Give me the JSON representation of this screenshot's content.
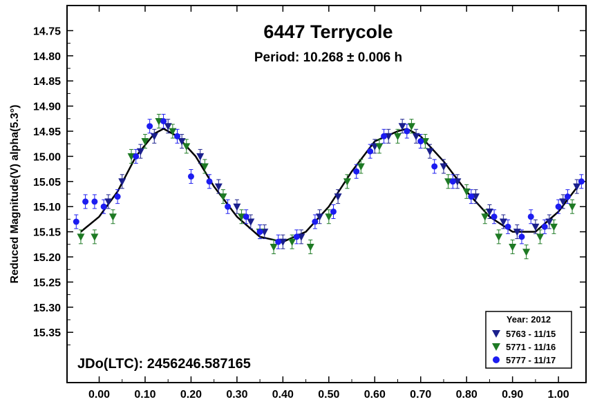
{
  "chart_data": {
    "type": "scatter",
    "title": "6447 Terrycole",
    "subtitle": "Period: 10.268 ± 0.006 h",
    "ylabel": "Reduced Magnitude(V) alpha(5.3°)",
    "xlabel": "",
    "annotation": "JDo(LTC): 2456246.587165",
    "xlim": [
      -0.07,
      1.06
    ],
    "ylim": [
      14.7,
      15.45
    ],
    "y_inverted": true,
    "grid": false,
    "legend_position": "bottom-right",
    "x_ticks": [
      0.0,
      0.1,
      0.2,
      0.3,
      0.4,
      0.5,
      0.6,
      0.7,
      0.8,
      0.9,
      1.0
    ],
    "x_tick_labels": [
      "0.00",
      "0.10",
      "0.20",
      "0.30",
      "0.40",
      "0.50",
      "0.60",
      "0.70",
      "0.80",
      "0.90",
      "1.00"
    ],
    "y_ticks": [
      14.75,
      14.8,
      14.85,
      14.9,
      14.95,
      15.0,
      15.05,
      15.1,
      15.15,
      15.2,
      15.25,
      15.3,
      15.35
    ],
    "y_tick_labels": [
      "14.75",
      "14.80",
      "14.85",
      "14.90",
      "14.95",
      "15.00",
      "15.05",
      "15.10",
      "15.15",
      "15.20",
      "15.25",
      "15.30",
      "15.35"
    ],
    "legend": {
      "title": "Year: 2012",
      "entries": [
        {
          "label": "5763 - 11/15",
          "marker": "triangle-down",
          "color": "#1a1f8c"
        },
        {
          "label": "5771 - 11/16",
          "marker": "triangle-down",
          "color": "#1e7a24"
        },
        {
          "label": "5777 - 11/17",
          "marker": "circle",
          "color": "#1c1cf0"
        }
      ]
    },
    "fit_curve": {
      "x": [
        -0.04,
        0.0,
        0.04,
        0.08,
        0.12,
        0.14,
        0.17,
        0.21,
        0.25,
        0.3,
        0.35,
        0.4,
        0.45,
        0.5,
        0.55,
        0.6,
        0.65,
        0.67,
        0.7,
        0.75,
        0.8,
        0.85,
        0.9,
        0.95,
        1.0,
        1.05
      ],
      "y": [
        15.15,
        15.12,
        15.07,
        15.0,
        14.955,
        14.945,
        14.96,
        15.0,
        15.06,
        15.12,
        15.16,
        15.17,
        15.15,
        15.1,
        15.03,
        14.97,
        14.95,
        14.945,
        14.96,
        15.01,
        15.07,
        15.12,
        15.15,
        15.15,
        15.11,
        15.05
      ]
    },
    "series": [
      {
        "name": "5763 - 11/15",
        "x": [
          0.02,
          0.05,
          0.09,
          0.12,
          0.15,
          0.18,
          0.22,
          0.26,
          0.3,
          0.33,
          0.36,
          0.4,
          0.44,
          0.48,
          0.52,
          0.6,
          0.63,
          0.66,
          0.69,
          0.72,
          0.75,
          0.78,
          0.82,
          0.85,
          0.88,
          0.91,
          0.95,
          0.98,
          1.01,
          1.04
        ],
        "y": [
          15.09,
          15.05,
          14.99,
          14.96,
          14.94,
          14.97,
          15.0,
          15.06,
          15.1,
          15.13,
          15.15,
          15.17,
          15.16,
          15.12,
          15.08,
          14.98,
          14.96,
          14.94,
          14.96,
          14.99,
          15.02,
          15.05,
          15.08,
          15.11,
          15.13,
          15.15,
          15.14,
          15.13,
          15.09,
          15.06
        ]
      },
      {
        "name": "5771 - 11/16",
        "x": [
          -0.04,
          -0.01,
          0.03,
          0.07,
          0.1,
          0.13,
          0.16,
          0.19,
          0.23,
          0.27,
          0.31,
          0.35,
          0.38,
          0.42,
          0.46,
          0.5,
          0.54,
          0.57,
          0.61,
          0.65,
          0.68,
          0.71,
          0.76,
          0.8,
          0.84,
          0.87,
          0.9,
          0.93,
          0.96,
          0.99,
          1.03
        ],
        "y": [
          15.16,
          15.16,
          15.12,
          15.0,
          14.97,
          14.93,
          14.95,
          14.98,
          15.02,
          15.08,
          15.12,
          15.15,
          15.18,
          15.17,
          15.18,
          15.12,
          15.05,
          15.02,
          14.98,
          14.96,
          14.94,
          14.97,
          15.05,
          15.07,
          15.12,
          15.16,
          15.18,
          15.19,
          15.16,
          15.14,
          15.1
        ]
      },
      {
        "name": "5777 - 11/17",
        "x": [
          -0.05,
          -0.03,
          -0.01,
          0.01,
          0.04,
          0.08,
          0.11,
          0.14,
          0.17,
          0.2,
          0.24,
          0.28,
          0.32,
          0.35,
          0.39,
          0.43,
          0.47,
          0.51,
          0.56,
          0.59,
          0.62,
          0.67,
          0.7,
          0.73,
          0.77,
          0.81,
          0.86,
          0.89,
          0.92,
          0.94,
          0.97,
          1.0,
          1.02,
          1.05
        ],
        "y": [
          15.13,
          15.09,
          15.09,
          15.1,
          15.08,
          15.0,
          14.94,
          14.93,
          14.96,
          15.04,
          15.05,
          15.1,
          15.12,
          15.15,
          15.17,
          15.16,
          15.13,
          15.11,
          15.03,
          14.99,
          14.96,
          14.95,
          14.97,
          15.02,
          15.05,
          15.08,
          15.12,
          15.14,
          15.16,
          15.12,
          15.14,
          15.1,
          15.08,
          15.05
        ]
      }
    ]
  }
}
